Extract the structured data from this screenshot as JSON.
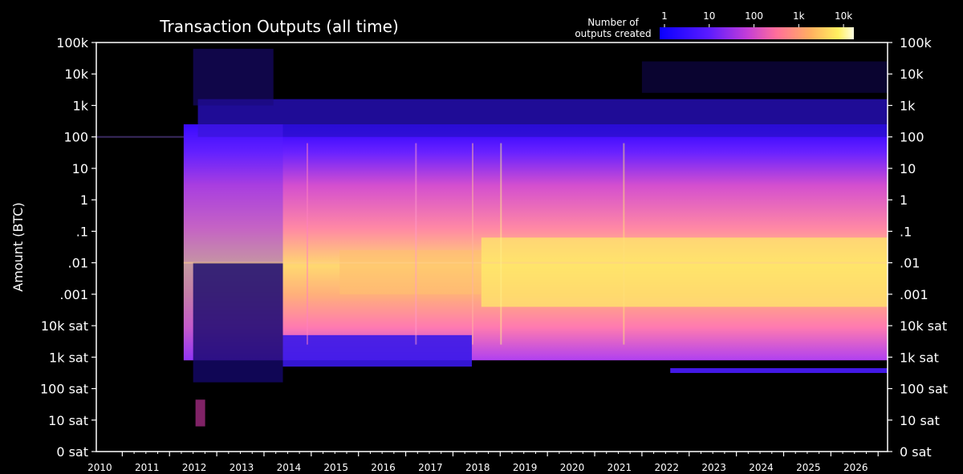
{
  "chart_data": {
    "type": "heatmap",
    "title": "Transaction Outputs (all time)",
    "ylabel": "Amount (BTC)",
    "xlabel": "",
    "x_ticks": [
      "2010",
      "2011",
      "2012",
      "2013",
      "2014",
      "2015",
      "2016",
      "2017",
      "2018",
      "2019",
      "2020",
      "2021",
      "2022",
      "2023",
      "2024",
      "2025",
      "2026"
    ],
    "y_ticks": [
      "100k",
      "10k",
      "1k",
      "100",
      "10",
      "1",
      ".1",
      ".01",
      ".001",
      "10k sat",
      "1k sat",
      "100 sat",
      "10 sat",
      "0 sat"
    ],
    "y_scale": "log",
    "colorbar": {
      "label_lines": [
        "Number of",
        "outputs created"
      ],
      "ticks": [
        "1",
        "10",
        "100",
        "1k",
        "10k"
      ],
      "scale": "log",
      "colormap": [
        "#000000",
        "#1a00ff",
        "#7a2cff",
        "#d64bd6",
        "#ff7aa0",
        "#ffb36a",
        "#ffef6b",
        "#ffffd0"
      ]
    },
    "x_range": [
      "2009",
      "2026"
    ],
    "notes_series": [
      {
        "x_start": 2011.3,
        "x_end": 2026.2,
        "y_min": "1k sat",
        "y_max": "1k",
        "intensity": "high"
      },
      {
        "x_start": 2009.0,
        "x_end": 2011.3,
        "y_min": "100",
        "y_max": "100",
        "intensity": "low"
      }
    ]
  }
}
